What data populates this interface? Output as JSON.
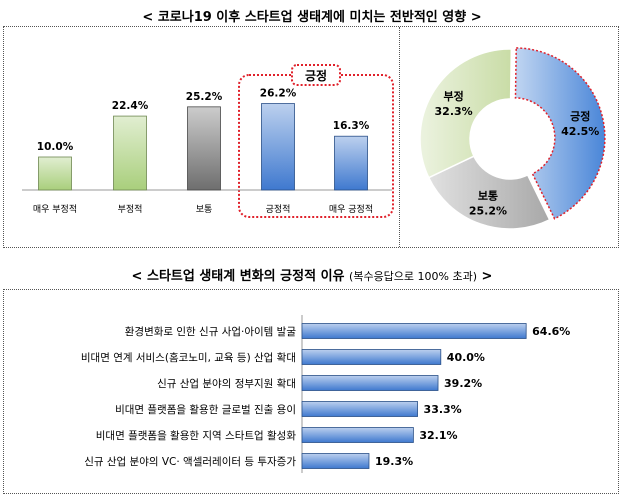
{
  "title1": {
    "lt": "<",
    "text": "코로나19 이후 스타트업 생태계에 미치는 전반적인 영향",
    "gt": ">"
  },
  "title2": {
    "lt": "<",
    "text": "스타트업 생태계 변화의 긍정적 이유",
    "note": "(복수응답으로 100% 초과)",
    "gt": ">"
  },
  "chart_data": [
    {
      "type": "bar",
      "categories": [
        "매우 부정적",
        "부정적",
        "보통",
        "긍정적",
        "매우 긍정적"
      ],
      "values": [
        10.0,
        22.4,
        25.2,
        26.2,
        16.3
      ],
      "value_labels": [
        "10.0%",
        "22.4%",
        "25.2%",
        "26.2%",
        "16.3%"
      ],
      "colors": [
        "#a9cf7c",
        "#a9cf7c",
        "#6e6e6e",
        "#3f79cf",
        "#3f79cf"
      ],
      "highlight": {
        "label": "긍정",
        "categories": [
          "긍정적",
          "매우 긍정적"
        ],
        "color": "#e0202a"
      },
      "grid": false
    },
    {
      "type": "pie",
      "style": "donut",
      "slices": [
        {
          "name": "긍정",
          "value": 42.5,
          "label": "42.5%",
          "color": "#4a86d8"
        },
        {
          "name": "보통",
          "value": 25.2,
          "label": "25.2%",
          "color": "#a8a8a8"
        },
        {
          "name": "부정",
          "value": 32.3,
          "label": "32.3%",
          "color": "#c9dca6"
        }
      ]
    },
    {
      "type": "bar",
      "orientation": "horizontal",
      "categories": [
        "환경변화로 인한 신규 사업·아이템 발굴",
        "비대면 연계 서비스(홈코노미, 교육 등) 산업 확대",
        "신규 산업 분야의 정부지원 확대",
        "비대면 플랫폼을 활용한 글로벌 진출 용이",
        "비대면 플랫폼을 활용한 지역 스타트업 활성화",
        "신규 산업 분야의 VC· 액셀러레이터 등 투자증가"
      ],
      "values": [
        64.6,
        40.0,
        39.2,
        33.3,
        32.1,
        19.3
      ],
      "value_labels": [
        "64.6%",
        "40.0%",
        "39.2%",
        "33.3%",
        "32.1%",
        "19.3%"
      ],
      "color": "#3f79cf",
      "grid": false
    }
  ]
}
